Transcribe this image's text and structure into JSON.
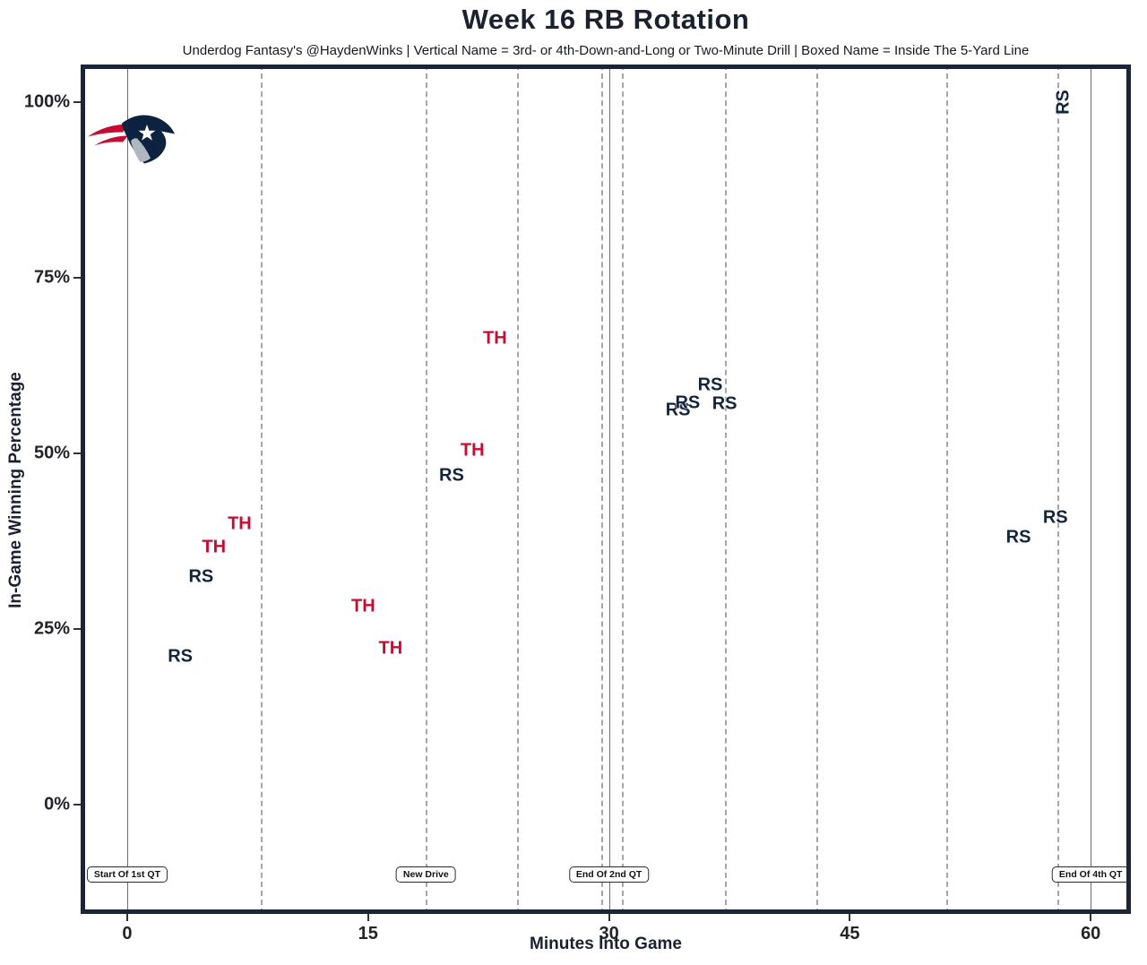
{
  "header": {
    "title": "Week 16 RB Rotation",
    "subtitle": "Underdog Fantasy's @HaydenWinks | Vertical Name = 3rd- or 4th-Down-and-Long or Two-Minute Drill | Boxed Name = Inside The 5-Yard Line"
  },
  "colors": {
    "navy": "#13243e",
    "red": "#c60c30",
    "plot_border": "#1c2538",
    "grid_dashed": "#a6a6a6",
    "grid_solid": "#6e6e6e",
    "logo_navy": "#0d2240",
    "logo_red": "#c60c30",
    "logo_silver": "#b0b7c0"
  },
  "icons": {
    "team_logo": "new-england-patriots-logo"
  },
  "chart_data": {
    "type": "scatter",
    "title": "Week 16 RB Rotation",
    "xlabel": "Minutes Into Game",
    "ylabel": "In-Game Winning Percentage",
    "xlim": [
      -2.9,
      62.5
    ],
    "ylim": [
      -15.6,
      105.3
    ],
    "grid": {
      "dashed_x": [
        8.3,
        18.6,
        24.3,
        29.5,
        30.8,
        37.2,
        42.9,
        51.0,
        57.9
      ],
      "solid_x": [
        0,
        30,
        60
      ]
    },
    "x_ticks": [
      {
        "value": 0,
        "label": "0"
      },
      {
        "value": 15,
        "label": "15"
      },
      {
        "value": 30,
        "label": "30"
      },
      {
        "value": 45,
        "label": "45"
      },
      {
        "value": 60,
        "label": "60"
      }
    ],
    "y_ticks": [
      {
        "value": 0,
        "label": "0%"
      },
      {
        "value": 25,
        "label": "25%"
      },
      {
        "value": 50,
        "label": "50%"
      },
      {
        "value": 75,
        "label": "75%"
      },
      {
        "value": 100,
        "label": "100%"
      }
    ],
    "series": [
      {
        "name": "RS",
        "color": "#13243e",
        "points": [
          {
            "x": 3.3,
            "y": 21.0
          },
          {
            "x": 4.6,
            "y": 32.4
          },
          {
            "x": 20.2,
            "y": 46.8
          },
          {
            "x": 34.3,
            "y": 56.1
          },
          {
            "x": 34.9,
            "y": 57.1
          },
          {
            "x": 37.2,
            "y": 57.0
          },
          {
            "x": 36.3,
            "y": 59.7
          },
          {
            "x": 55.5,
            "y": 38.0
          },
          {
            "x": 57.8,
            "y": 40.8
          },
          {
            "x": 58.3,
            "y": 99.9,
            "rotated": true
          }
        ]
      },
      {
        "name": "TH",
        "color": "#c60c30",
        "points": [
          {
            "x": 5.4,
            "y": 36.6
          },
          {
            "x": 7.0,
            "y": 39.9
          },
          {
            "x": 14.7,
            "y": 28.2
          },
          {
            "x": 16.4,
            "y": 22.2
          },
          {
            "x": 21.5,
            "y": 50.3
          },
          {
            "x": 22.9,
            "y": 66.3
          }
        ]
      }
    ],
    "annotations": [
      {
        "label": "Start Of 1st QT",
        "x": 0,
        "y": -10
      },
      {
        "label": "New Drive",
        "x": 18.6,
        "y": -10
      },
      {
        "label": "End Of 2nd QT",
        "x": 30,
        "y": -10
      },
      {
        "label": "End Of 4th QT",
        "x": 60,
        "y": -10
      }
    ],
    "logo_position": {
      "x": 0.2,
      "y": 94.8
    }
  }
}
